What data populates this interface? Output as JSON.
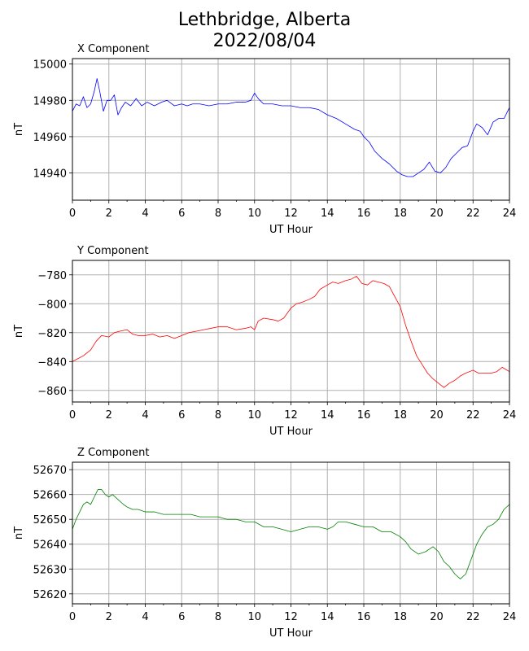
{
  "title_line1": "Lethbridge, Alberta",
  "title_line2": "2022/08/04",
  "chart_data": [
    {
      "type": "line",
      "title": "X Component",
      "xlabel": "UT Hour",
      "ylabel": "nT",
      "color": "#0000ff",
      "xlim": [
        0,
        24
      ],
      "ylim": [
        14925,
        15003
      ],
      "xticks": [
        0,
        2,
        4,
        6,
        8,
        10,
        12,
        14,
        16,
        18,
        20,
        22,
        24
      ],
      "yticks": [
        14940,
        14960,
        14980,
        15000
      ],
      "grid": true,
      "x": [
        0,
        0.2,
        0.4,
        0.6,
        0.8,
        1.0,
        1.2,
        1.35,
        1.5,
        1.7,
        1.9,
        2.1,
        2.3,
        2.5,
        2.7,
        2.9,
        3.2,
        3.5,
        3.8,
        4.1,
        4.5,
        4.9,
        5.2,
        5.6,
        6.0,
        6.3,
        6.6,
        7.0,
        7.5,
        8.0,
        8.5,
        9.0,
        9.5,
        9.8,
        10.0,
        10.2,
        10.5,
        11.0,
        11.5,
        12.0,
        12.5,
        13.0,
        13.5,
        14.0,
        14.5,
        15.0,
        15.5,
        15.8,
        16.0,
        16.3,
        16.6,
        17.0,
        17.4,
        17.8,
        18.1,
        18.4,
        18.7,
        19.0,
        19.3,
        19.6,
        19.9,
        20.2,
        20.5,
        20.8,
        21.1,
        21.4,
        21.7,
        22.0,
        22.2,
        22.5,
        22.8,
        23.1,
        23.4,
        23.7,
        24.0
      ],
      "values": [
        14974,
        14978,
        14977,
        14982,
        14976,
        14978,
        14985,
        14992,
        14985,
        14974,
        14980,
        14980,
        14983,
        14972,
        14976,
        14979,
        14977,
        14981,
        14977,
        14979,
        14977,
        14979,
        14980,
        14977,
        14978,
        14977,
        14978,
        14978,
        14977,
        14978,
        14978,
        14979,
        14979,
        14980,
        14984,
        14981,
        14978,
        14978,
        14977,
        14977,
        14976,
        14976,
        14975,
        14972,
        14970,
        14967,
        14964,
        14963,
        14960,
        14957,
        14952,
        14948,
        14945,
        14941,
        14939,
        14938,
        14938,
        14940,
        14942,
        14946,
        14941,
        14940,
        14943,
        14948,
        14951,
        14954,
        14955,
        14963,
        14967,
        14965,
        14961,
        14968,
        14970,
        14970,
        14976
      ]
    },
    {
      "type": "line",
      "title": "Y Component",
      "xlabel": "UT Hour",
      "ylabel": "nT",
      "color": "#ff0000",
      "xlim": [
        0,
        24
      ],
      "ylim": [
        -868,
        -770
      ],
      "xticks": [
        0,
        2,
        4,
        6,
        8,
        10,
        12,
        14,
        16,
        18,
        20,
        22,
        24
      ],
      "yticks": [
        -780,
        -800,
        -820,
        -840,
        -860
      ],
      "grid": true,
      "x": [
        0,
        0.3,
        0.6,
        1.0,
        1.3,
        1.6,
        2.0,
        2.3,
        2.6,
        3.0,
        3.3,
        3.6,
        4.0,
        4.4,
        4.8,
        5.2,
        5.6,
        6.0,
        6.4,
        6.8,
        7.2,
        7.6,
        8.0,
        8.5,
        9.0,
        9.5,
        9.8,
        10.0,
        10.2,
        10.5,
        11.0,
        11.3,
        11.6,
        12.0,
        12.3,
        12.6,
        13.0,
        13.3,
        13.6,
        14.0,
        14.3,
        14.6,
        15.0,
        15.3,
        15.6,
        15.9,
        16.2,
        16.5,
        16.8,
        17.1,
        17.4,
        17.7,
        18.0,
        18.3,
        18.6,
        18.9,
        19.2,
        19.5,
        19.8,
        20.1,
        20.4,
        20.7,
        21.0,
        21.3,
        21.6,
        22.0,
        22.3,
        22.6,
        23.0,
        23.3,
        23.6,
        24.0
      ],
      "values": [
        -840,
        -838,
        -836,
        -832,
        -826,
        -822,
        -823,
        -820,
        -819,
        -818,
        -821,
        -822,
        -822,
        -821,
        -823,
        -822,
        -824,
        -822,
        -820,
        -819,
        -818,
        -817,
        -816,
        -816,
        -818,
        -817,
        -816,
        -818,
        -812,
        -810,
        -811,
        -812,
        -810,
        -803,
        -800,
        -799,
        -797,
        -795,
        -790,
        -787,
        -785,
        -786,
        -784,
        -783,
        -781,
        -786,
        -787,
        -784,
        -785,
        -786,
        -788,
        -795,
        -802,
        -815,
        -826,
        -836,
        -842,
        -848,
        -852,
        -855,
        -858,
        -855,
        -853,
        -850,
        -848,
        -846,
        -848,
        -848,
        -848,
        -847,
        -844,
        -847
      ]
    },
    {
      "type": "line",
      "title": "Z Component",
      "xlabel": "UT Hour",
      "ylabel": "nT",
      "color": "#008000",
      "xlim": [
        0,
        24
      ],
      "ylim": [
        52616,
        52673
      ],
      "xticks": [
        0,
        2,
        4,
        6,
        8,
        10,
        12,
        14,
        16,
        18,
        20,
        22,
        24
      ],
      "yticks": [
        52620,
        52630,
        52640,
        52650,
        52660,
        52670
      ],
      "grid": true,
      "x": [
        0,
        0.2,
        0.4,
        0.6,
        0.8,
        1.0,
        1.2,
        1.4,
        1.6,
        1.8,
        2.0,
        2.2,
        2.5,
        2.8,
        3.0,
        3.3,
        3.6,
        4.0,
        4.5,
        5.0,
        5.5,
        6.0,
        6.5,
        7.0,
        7.5,
        8.0,
        8.5,
        9.0,
        9.5,
        10.0,
        10.5,
        11.0,
        11.5,
        12.0,
        12.5,
        13.0,
        13.5,
        14.0,
        14.3,
        14.6,
        15.0,
        15.5,
        16.0,
        16.5,
        17.0,
        17.5,
        18.0,
        18.3,
        18.6,
        19.0,
        19.4,
        19.8,
        20.1,
        20.4,
        20.7,
        21.0,
        21.3,
        21.6,
        21.9,
        22.2,
        22.5,
        22.8,
        23.1,
        23.4,
        23.7,
        24.0
      ],
      "values": [
        52646,
        52650,
        52653,
        52656,
        52657,
        52656,
        52659,
        52662,
        52662,
        52660,
        52659,
        52660,
        52658,
        52656,
        52655,
        52654,
        52654,
        52653,
        52653,
        52652,
        52652,
        52652,
        52652,
        52651,
        52651,
        52651,
        52650,
        52650,
        52649,
        52649,
        52647,
        52647,
        52646,
        52645,
        52646,
        52647,
        52647,
        52646,
        52647,
        52649,
        52649,
        52648,
        52647,
        52647,
        52645,
        52645,
        52643,
        52641,
        52638,
        52636,
        52637,
        52639,
        52637,
        52633,
        52631,
        52628,
        52626,
        52628,
        52634,
        52640,
        52644,
        52647,
        52648,
        52650,
        52654,
        52656
      ]
    }
  ]
}
